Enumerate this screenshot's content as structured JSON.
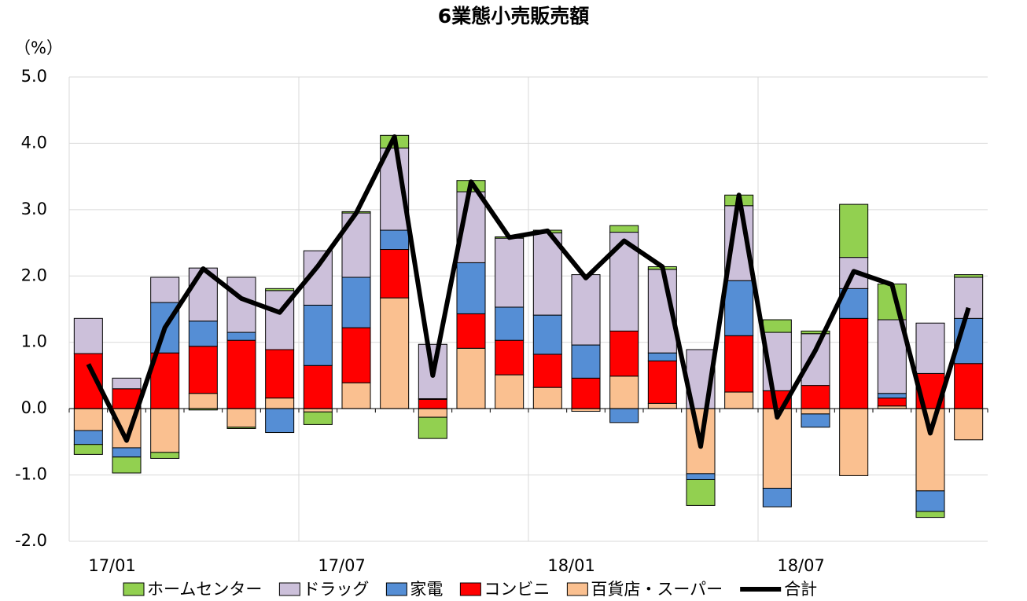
{
  "chart_data": {
    "type": "bar",
    "title": "6業態小売販売額",
    "y_label": "（%）",
    "categories": [
      "17/01",
      null,
      null,
      null,
      null,
      null,
      "17/07",
      null,
      null,
      null,
      null,
      null,
      "18/01",
      null,
      null,
      null,
      null,
      null,
      "18/07",
      null,
      null,
      null,
      null,
      null
    ],
    "series": [
      {
        "name": "ホームセンター",
        "color": "#92d050",
        "values": [
          -0.15,
          -0.24,
          -0.09,
          -0.02,
          -0.02,
          0.03,
          -0.19,
          0.02,
          0.19,
          -0.32,
          0.17,
          0.02,
          0.04,
          0.0,
          0.1,
          0.04,
          -0.39,
          0.16,
          0.19,
          0.04,
          0.8,
          0.54,
          -0.09,
          0.04
        ]
      },
      {
        "name": "ドラッグ",
        "color": "#ccc0da",
        "values": [
          0.53,
          0.16,
          0.38,
          0.8,
          0.83,
          0.89,
          0.82,
          0.97,
          1.24,
          0.82,
          1.07,
          1.04,
          1.24,
          1.06,
          1.49,
          1.26,
          0.89,
          1.13,
          0.88,
          0.78,
          0.47,
          1.11,
          0.76,
          0.62
        ]
      },
      {
        "name": "家電",
        "color": "#558ed5",
        "values": [
          -0.21,
          -0.14,
          0.76,
          0.38,
          0.12,
          -0.36,
          0.91,
          0.76,
          0.29,
          0.01,
          0.77,
          0.5,
          0.59,
          0.5,
          -0.21,
          0.12,
          -0.09,
          0.83,
          -0.28,
          -0.2,
          0.45,
          0.07,
          -0.31,
          0.68
        ]
      },
      {
        "name": "コンビニ",
        "color": "#ff0000",
        "values": [
          0.83,
          0.3,
          0.84,
          0.71,
          1.03,
          0.73,
          0.65,
          0.83,
          0.73,
          0.14,
          0.52,
          0.52,
          0.5,
          0.46,
          0.68,
          0.64,
          0.0,
          0.85,
          0.27,
          0.35,
          1.36,
          0.12,
          0.53,
          0.68
        ]
      },
      {
        "name": "百貨店・スーパー",
        "color": "#fac090",
        "values": [
          -0.33,
          -0.59,
          -0.66,
          0.23,
          -0.28,
          0.16,
          -0.05,
          0.39,
          1.67,
          -0.13,
          0.91,
          0.51,
          0.32,
          -0.04,
          0.49,
          0.08,
          -0.98,
          0.25,
          -1.2,
          -0.08,
          -1.01,
          0.04,
          -1.24,
          -0.47
        ]
      },
      {
        "name": "合計",
        "color": "#000000",
        "type": "line",
        "values": [
          0.67,
          -0.48,
          1.22,
          2.11,
          1.66,
          1.45,
          2.15,
          2.95,
          4.1,
          0.5,
          3.42,
          2.58,
          2.68,
          1.97,
          2.53,
          2.14,
          -0.57,
          3.22,
          -0.13,
          0.88,
          2.07,
          1.87,
          -0.37,
          1.52
        ]
      }
    ],
    "ylim": [
      -2,
      5
    ],
    "yticks": [
      {
        "value": -2,
        "label": "-2.0"
      },
      {
        "value": -1,
        "label": "-1.0"
      },
      {
        "value": 0,
        "label": "0.0"
      },
      {
        "value": 1,
        "label": "1.0"
      },
      {
        "value": 2,
        "label": "2.0"
      },
      {
        "value": 3,
        "label": "3.0"
      },
      {
        "value": 4,
        "label": "4.0"
      },
      {
        "value": 5,
        "label": "5.0"
      }
    ],
    "grid": true,
    "legend": "bottom"
  }
}
